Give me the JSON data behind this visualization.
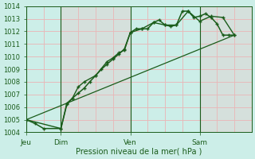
{
  "xlabel": "Pression niveau de la mer( hPa )",
  "ylim": [
    1004,
    1014
  ],
  "yticks": [
    1004,
    1005,
    1006,
    1007,
    1008,
    1009,
    1010,
    1011,
    1012,
    1013,
    1014
  ],
  "bg_color": "#cceee8",
  "grid_color_minor": "#e8b8b8",
  "grid_color_major": "#d09090",
  "line_color": "#1a5c1a",
  "day_labels": [
    "Jeu",
    "Dim",
    "Ven",
    "Sam"
  ],
  "day_positions": [
    0.0,
    1.0,
    3.0,
    5.0
  ],
  "xlim": [
    0.0,
    6.5
  ],
  "line1_x": [
    0.0,
    0.25,
    0.5,
    1.0,
    1.17,
    1.33,
    1.5,
    1.67,
    1.83,
    2.0,
    2.17,
    2.33,
    2.5,
    2.67,
    2.83,
    3.0,
    3.17,
    3.33,
    3.5,
    3.67,
    3.83,
    4.0,
    4.17,
    4.33,
    4.5,
    4.67,
    4.83,
    5.0,
    5.17,
    5.33,
    5.5,
    5.67,
    5.83,
    6.0
  ],
  "line1_y": [
    1005.0,
    1004.7,
    1004.3,
    1004.3,
    1006.2,
    1006.7,
    1007.1,
    1007.5,
    1008.0,
    1008.5,
    1009.0,
    1009.4,
    1009.8,
    1010.2,
    1010.6,
    1011.9,
    1012.2,
    1012.2,
    1012.2,
    1012.7,
    1012.9,
    1012.5,
    1012.4,
    1012.5,
    1013.6,
    1013.6,
    1013.1,
    1013.2,
    1013.4,
    1013.1,
    1012.6,
    1011.7,
    1011.7,
    1011.7
  ],
  "line2_x": [
    0.0,
    1.0,
    1.17,
    1.33,
    1.5,
    1.67,
    2.0,
    2.33,
    2.5,
    2.67,
    2.83,
    3.0,
    3.33,
    3.67,
    4.0,
    4.33,
    4.67,
    5.0,
    5.33,
    5.67,
    6.0
  ],
  "line2_y": [
    1005.0,
    1004.3,
    1006.3,
    1006.7,
    1007.6,
    1008.0,
    1008.5,
    1009.6,
    1009.9,
    1010.3,
    1010.5,
    1011.9,
    1012.2,
    1012.7,
    1012.5,
    1012.5,
    1013.6,
    1012.8,
    1013.2,
    1013.1,
    1011.7
  ],
  "line3_x": [
    0.0,
    6.0
  ],
  "line3_y": [
    1005.0,
    1011.7
  ]
}
